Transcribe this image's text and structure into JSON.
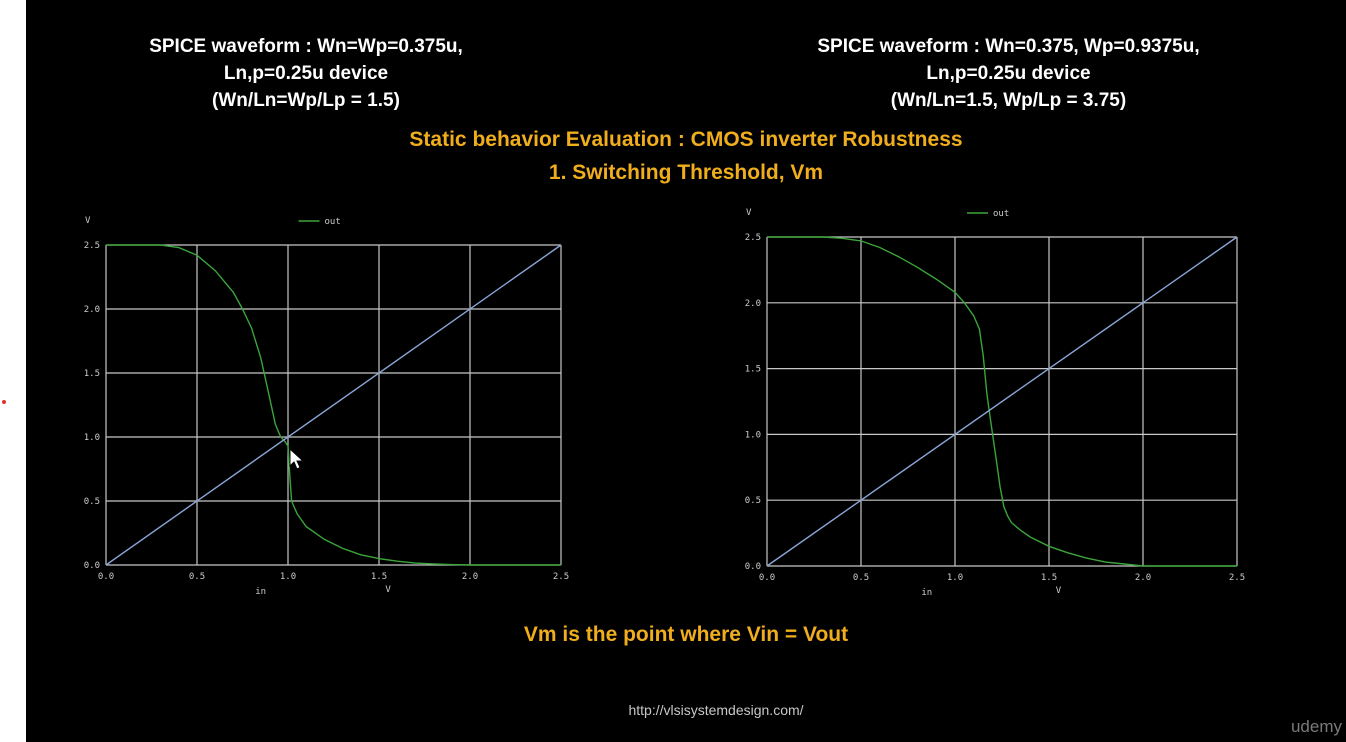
{
  "slide": {
    "left_header": {
      "line1": "SPICE waveform : Wn=Wp=0.375u,",
      "line2": "Ln,p=0.25u device",
      "line3": "(Wn/Ln=Wp/Lp = 1.5)"
    },
    "right_header": {
      "line1": "SPICE waveform : Wn=0.375, Wp=0.9375u,",
      "line2": "Ln,p=0.25u device",
      "line3": "(Wn/Ln=1.5, Wp/Lp = 3.75)"
    },
    "title_line1": "Static behavior Evaluation : CMOS inverter Robustness",
    "title_line2": "1. Switching Threshold, Vm",
    "conclusion": "Vm is the point where Vin = Vout",
    "footer_url": "http://vlsisystemdesign.com/",
    "brand": "udemy"
  },
  "colors": {
    "background": "#000000",
    "header_text": "#ffffff",
    "title_text": "#f0ad1c",
    "grid": "#c8c8c8",
    "out_curve": "#3aa53a",
    "reference_line": "#8aa6d6",
    "axis_text": "#cccccc"
  },
  "chart_data": [
    {
      "type": "line",
      "xlim": [
        0,
        2.5
      ],
      "ylim": [
        0,
        2.5
      ],
      "x_ticks": [
        "0.0",
        "0.5",
        "1.0",
        "1.5",
        "2.0",
        "2.5"
      ],
      "y_ticks": [
        "0.0",
        "0.5",
        "1.0",
        "1.5",
        "2.0",
        "2.5"
      ],
      "xlabel": "in",
      "xunit": "V",
      "yunit": "V",
      "grid": true,
      "legend": "top-center",
      "series": [
        {
          "name": "out",
          "x": [
            0,
            0.3,
            0.35,
            0.4,
            0.5,
            0.6,
            0.7,
            0.75,
            0.8,
            0.85,
            0.9,
            0.93,
            0.96,
            0.98,
            1.0,
            1.01,
            1.02,
            1.05,
            1.1,
            1.2,
            1.3,
            1.4,
            1.5,
            1.6,
            1.7,
            1.8,
            1.9,
            2.0,
            2.5
          ],
          "y": [
            2.5,
            2.5,
            2.49,
            2.48,
            2.42,
            2.3,
            2.13,
            2.0,
            1.85,
            1.62,
            1.3,
            1.1,
            1.0,
            0.97,
            0.93,
            0.7,
            0.5,
            0.4,
            0.3,
            0.2,
            0.13,
            0.08,
            0.05,
            0.03,
            0.015,
            0.008,
            0.003,
            0.0,
            0.0
          ]
        },
        {
          "x": [
            0,
            2.5
          ],
          "y": [
            0,
            2.5
          ]
        }
      ]
    },
    {
      "type": "line",
      "xlim": [
        0,
        2.5
      ],
      "ylim": [
        0,
        2.5
      ],
      "x_ticks": [
        "0.0",
        "0.5",
        "1.0",
        "1.5",
        "2.0",
        "2.5"
      ],
      "y_ticks": [
        "0.0",
        "0.5",
        "1.0",
        "1.5",
        "2.0",
        "2.5"
      ],
      "xlabel": "in",
      "xunit": "V",
      "yunit": "V",
      "grid": true,
      "legend": "top-center",
      "series": [
        {
          "name": "out",
          "x": [
            0,
            0.3,
            0.4,
            0.5,
            0.6,
            0.7,
            0.8,
            0.9,
            1.0,
            1.05,
            1.1,
            1.13,
            1.15,
            1.17,
            1.19,
            1.2,
            1.22,
            1.24,
            1.26,
            1.28,
            1.3,
            1.35,
            1.4,
            1.5,
            1.6,
            1.7,
            1.8,
            1.9,
            2.0,
            2.5
          ],
          "y": [
            2.5,
            2.5,
            2.49,
            2.47,
            2.42,
            2.35,
            2.27,
            2.18,
            2.08,
            2.0,
            1.9,
            1.8,
            1.6,
            1.3,
            1.1,
            1.0,
            0.8,
            0.6,
            0.45,
            0.38,
            0.33,
            0.27,
            0.22,
            0.15,
            0.1,
            0.06,
            0.03,
            0.015,
            0.0,
            0.0
          ]
        },
        {
          "x": [
            0,
            2.5
          ],
          "y": [
            0,
            2.5
          ]
        }
      ]
    }
  ]
}
